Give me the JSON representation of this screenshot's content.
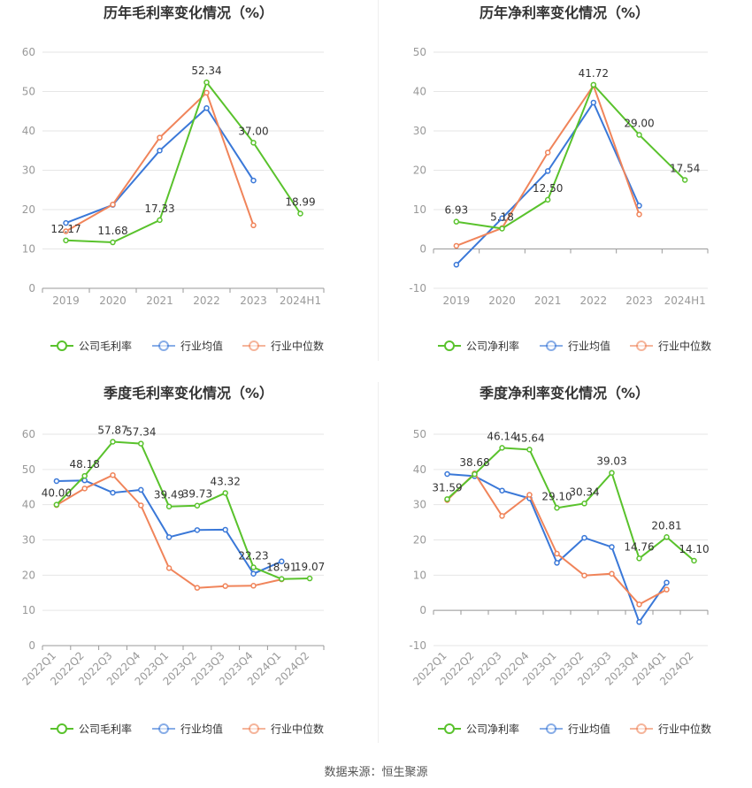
{
  "source_label": "数据来源：恒生聚源",
  "colors": {
    "company": "#59c22c",
    "industry_avg": "#3a78d8",
    "industry_median": "#f0845a",
    "grid": "#e6e6e6",
    "axis": "#999999",
    "tick_text": "#999999",
    "label_text": "#333333",
    "title_text": "#333333"
  },
  "chart_data": [
    {
      "type": "line",
      "title": "历年毛利率变化情况（%）",
      "categories": [
        "2019",
        "2020",
        "2021",
        "2022",
        "2023",
        "2024H1"
      ],
      "ylim": [
        0,
        60
      ],
      "yticks": [
        0,
        10,
        20,
        30,
        40,
        50,
        60
      ],
      "grid": true,
      "legend_placement": "bottom",
      "series": [
        {
          "name": "公司毛利率",
          "key": "company",
          "values": [
            12.17,
            11.68,
            17.33,
            52.34,
            37.0,
            18.99
          ],
          "labels": [
            "12.17",
            "11.68",
            "17.33",
            "52.34",
            "37.00",
            "18.99"
          ]
        },
        {
          "name": "行业均值",
          "key": "industry_avg",
          "values": [
            16.6,
            21.2,
            35.0,
            45.8,
            27.4,
            null
          ]
        },
        {
          "name": "行业中位数",
          "key": "industry_median",
          "values": [
            14.5,
            21.3,
            38.3,
            49.7,
            16.0,
            null
          ]
        }
      ]
    },
    {
      "type": "line",
      "title": "历年净利率变化情况（%）",
      "categories": [
        "2019",
        "2020",
        "2021",
        "2022",
        "2023",
        "2024H1"
      ],
      "ylim": [
        -10,
        50
      ],
      "yticks": [
        -10,
        0,
        10,
        20,
        30,
        40,
        50
      ],
      "grid": true,
      "legend_placement": "bottom",
      "series": [
        {
          "name": "公司净利率",
          "key": "company",
          "values": [
            6.93,
            5.18,
            12.5,
            41.72,
            29.0,
            17.54
          ],
          "labels": [
            "6.93",
            "5.18",
            "12.50",
            "41.72",
            "29.00",
            "17.54"
          ]
        },
        {
          "name": "行业均值",
          "key": "industry_avg",
          "values": [
            -4.0,
            7.8,
            19.8,
            37.2,
            11.0,
            null
          ]
        },
        {
          "name": "行业中位数",
          "key": "industry_median",
          "values": [
            0.8,
            5.3,
            24.5,
            41.5,
            8.8,
            null
          ]
        }
      ]
    },
    {
      "type": "line",
      "title": "季度毛利率变化情况（%）",
      "categories": [
        "2022Q1",
        "2022Q2",
        "2022Q3",
        "2022Q4",
        "2023Q1",
        "2023Q2",
        "2023Q3",
        "2023Q4",
        "2024Q1",
        "2024Q2"
      ],
      "ylim": [
        0,
        60
      ],
      "yticks": [
        0,
        10,
        20,
        30,
        40,
        50,
        60
      ],
      "grid": true,
      "legend_placement": "bottom",
      "series": [
        {
          "name": "公司毛利率",
          "key": "company",
          "values": [
            40.0,
            48.18,
            57.87,
            57.34,
            39.49,
            39.73,
            43.32,
            22.23,
            18.91,
            19.07
          ],
          "labels": [
            "40.00",
            "48.18",
            "57.87",
            "57.34",
            "39.49",
            "39.73",
            "43.32",
            "22.23",
            "18.91",
            "19.07"
          ]
        },
        {
          "name": "行业均值",
          "key": "industry_avg",
          "values": [
            46.7,
            46.9,
            43.4,
            44.2,
            30.8,
            32.8,
            32.9,
            20.4,
            23.9,
            null
          ]
        },
        {
          "name": "行业中位数",
          "key": "industry_median",
          "values": [
            39.9,
            44.6,
            48.4,
            39.8,
            22.0,
            16.4,
            16.9,
            17.0,
            18.8,
            null
          ]
        }
      ]
    },
    {
      "type": "line",
      "title": "季度净利率变化情况（%）",
      "categories": [
        "2022Q1",
        "2022Q2",
        "2022Q3",
        "2022Q4",
        "2023Q1",
        "2023Q2",
        "2023Q3",
        "2023Q4",
        "2024Q1",
        "2024Q2"
      ],
      "ylim": [
        -10,
        50
      ],
      "yticks": [
        -10,
        0,
        10,
        20,
        30,
        40,
        50
      ],
      "grid": true,
      "legend_placement": "bottom",
      "series": [
        {
          "name": "公司净利率",
          "key": "company",
          "values": [
            31.59,
            38.68,
            46.14,
            45.64,
            29.1,
            30.34,
            39.03,
            14.76,
            20.81,
            14.1
          ],
          "labels": [
            "31.59",
            "38.68",
            "46.14",
            "45.64",
            "29.10",
            "30.34",
            "39.03",
            "14.76",
            "20.81",
            "14.10"
          ]
        },
        {
          "name": "行业均值",
          "key": "industry_avg",
          "values": [
            38.7,
            38.1,
            34.0,
            31.8,
            13.5,
            20.6,
            18.0,
            -3.3,
            7.9,
            null
          ]
        },
        {
          "name": "行业中位数",
          "key": "industry_median",
          "values": [
            31.3,
            38.9,
            26.8,
            32.8,
            16.1,
            9.9,
            10.4,
            1.7,
            5.9,
            null
          ]
        }
      ]
    }
  ]
}
